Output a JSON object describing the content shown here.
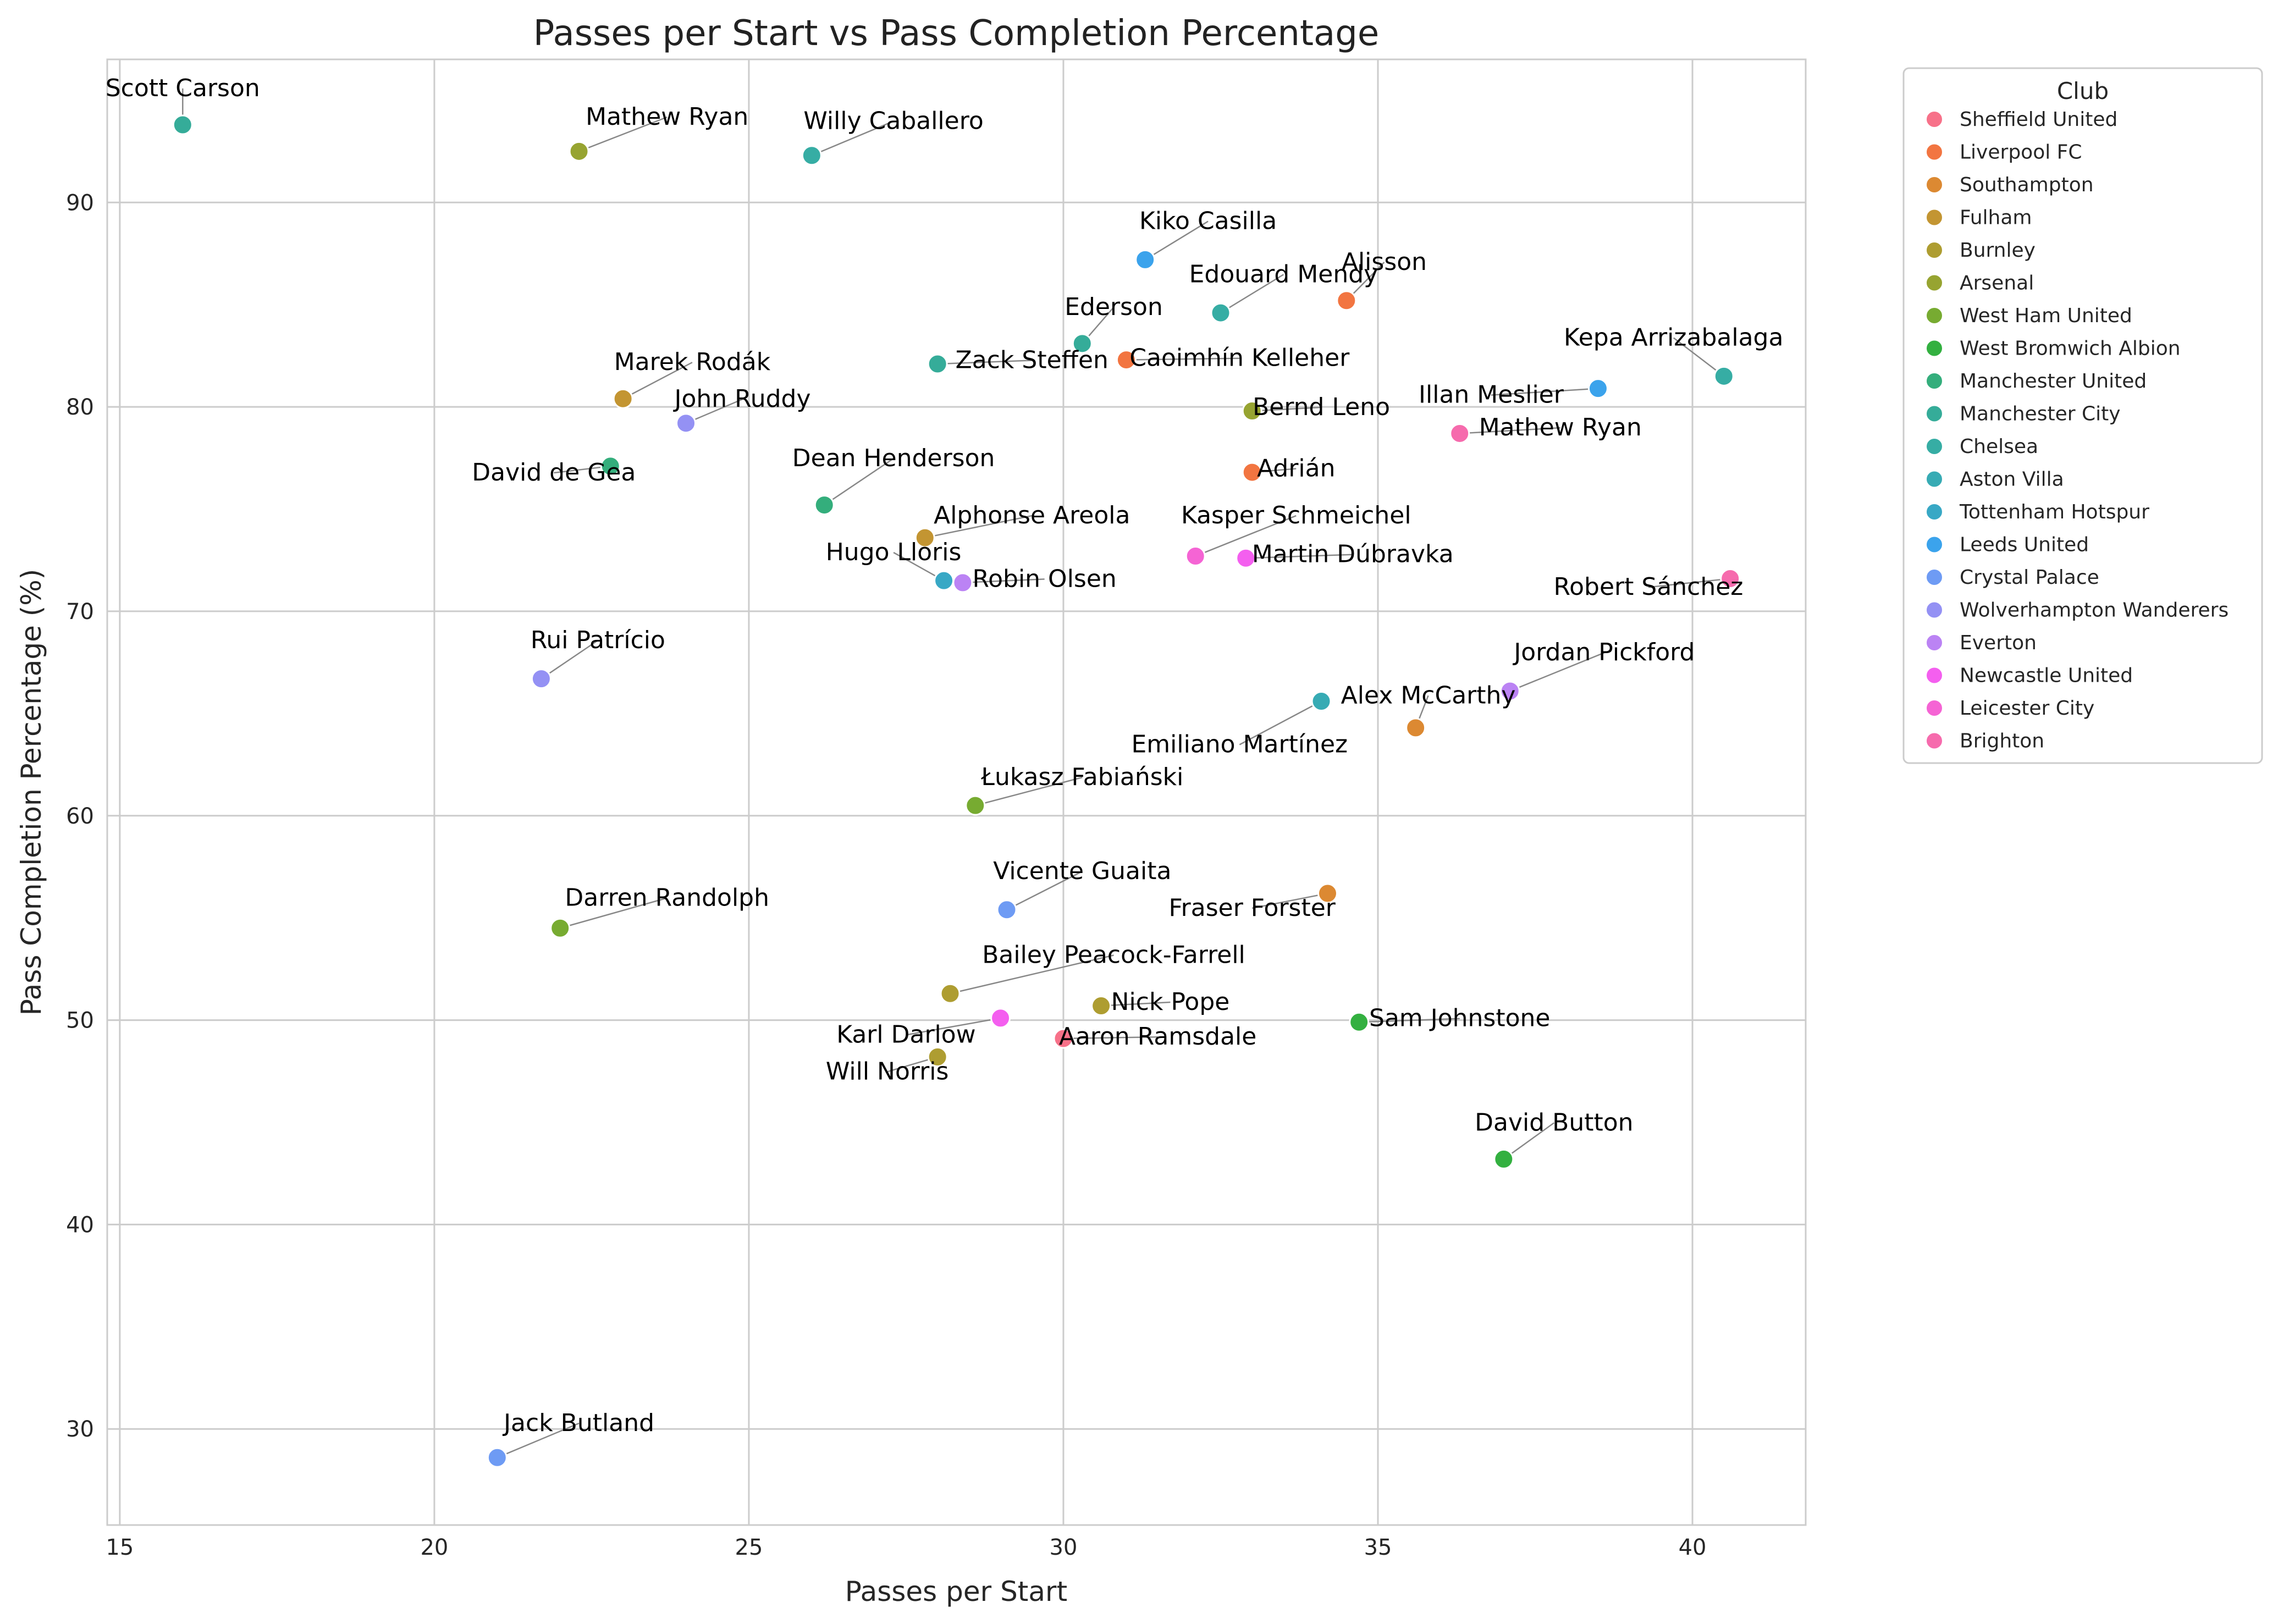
{
  "chart_data": {
    "type": "scatter",
    "title": "Passes per Start vs Pass Completion Percentage",
    "xlabel": "Passes per Start",
    "ylabel": "Pass Completion Percentage (%)",
    "xlim": [
      14.8,
      41.8
    ],
    "ylim": [
      25.3,
      97
    ],
    "x_ticks": [
      15,
      20,
      25,
      30,
      35,
      40
    ],
    "y_ticks": [
      30,
      40,
      50,
      60,
      70,
      80,
      90
    ],
    "grid": true,
    "legend": {
      "title": "Club",
      "placement": "outside-top-right",
      "entries": [
        {
          "name": "Sheffield United",
          "color": "#f77189"
        },
        {
          "name": "Liverpool FC",
          "color": "#f27541"
        },
        {
          "name": "Southampton",
          "color": "#dc8932"
        },
        {
          "name": "Fulham",
          "color": "#c39532"
        },
        {
          "name": "Burnley",
          "color": "#ae9d31"
        },
        {
          "name": "Arsenal",
          "color": "#97a431"
        },
        {
          "name": "West Ham United",
          "color": "#77ab31"
        },
        {
          "name": "West Bromwich Albion",
          "color": "#33b040"
        },
        {
          "name": "Manchester United",
          "color": "#34ae7c"
        },
        {
          "name": "Manchester City",
          "color": "#35ac99"
        },
        {
          "name": "Chelsea",
          "color": "#36ada4"
        },
        {
          "name": "Aston Villa",
          "color": "#37abb4"
        },
        {
          "name": "Tottenham Hotspur",
          "color": "#38a8c5"
        },
        {
          "name": "Leeds United",
          "color": "#3ba3ec"
        },
        {
          "name": "Crystal Palace",
          "color": "#6e9bf4"
        },
        {
          "name": "Wolverhampton Wanderers",
          "color": "#9491f4"
        },
        {
          "name": "Everton",
          "color": "#bb83f4"
        },
        {
          "name": "Newcastle United",
          "color": "#f45fef"
        },
        {
          "name": "Leicester City",
          "color": "#f564d4"
        },
        {
          "name": "Brighton",
          "color": "#f66bad"
        }
      ]
    },
    "points": [
      {
        "label": "Scott Carson",
        "club": "Manchester City",
        "x": 16.0,
        "y": 93.8,
        "lx": 16.0,
        "ly": 95.2
      },
      {
        "label": "Mathew Ryan",
        "club": "Arsenal",
        "x": 22.3,
        "y": 92.5,
        "lx": 23.7,
        "ly": 93.8
      },
      {
        "label": "Willy Caballero",
        "club": "Chelsea",
        "x": 26.0,
        "y": 92.3,
        "lx": 27.3,
        "ly": 93.6
      },
      {
        "label": "Kiko Casilla",
        "club": "Leeds United",
        "x": 31.3,
        "y": 87.2,
        "lx": 32.3,
        "ly": 88.7
      },
      {
        "label": "Alisson",
        "club": "Liverpool FC",
        "x": 34.5,
        "y": 85.2,
        "lx": 35.1,
        "ly": 86.7
      },
      {
        "label": "Edouard Mendy",
        "club": "Chelsea",
        "x": 32.5,
        "y": 84.6,
        "lx": 33.5,
        "ly": 86.1
      },
      {
        "label": "Ederson",
        "club": "Manchester City",
        "x": 30.3,
        "y": 83.1,
        "lx": 30.8,
        "ly": 84.5
      },
      {
        "label": "Caoimhín Kelleher",
        "club": "Liverpool FC",
        "x": 31.0,
        "y": 82.3,
        "lx": 32.8,
        "ly": 82.0
      },
      {
        "label": "Zack Steffen",
        "club": "Manchester City",
        "x": 28.0,
        "y": 82.1,
        "lx": 29.5,
        "ly": 81.9
      },
      {
        "label": "Kepa Arrizabalaga",
        "club": "Chelsea",
        "x": 40.5,
        "y": 81.5,
        "lx": 39.7,
        "ly": 83.0
      },
      {
        "label": "Leeds United",
        "club": "Leeds United",
        "x": 38.5,
        "y": 80.9,
        "lx": 36.8,
        "ly": 80.2,
        "display": "Illan Meslier"
      },
      {
        "label": "Marek Rodák",
        "club": "Fulham",
        "x": 23.0,
        "y": 80.4,
        "lx": 24.1,
        "ly": 81.8
      },
      {
        "label": "Bernd Leno",
        "club": "Arsenal",
        "x": 33.0,
        "y": 79.8,
        "lx": 34.1,
        "ly": 79.6
      },
      {
        "label": "John Ruddy",
        "club": "Wolverhampton Wanderers",
        "x": 24.0,
        "y": 79.2,
        "lx": 24.9,
        "ly": 80.0
      },
      {
        "label": "Mathew Ryan",
        "club": "Brighton",
        "x": 36.3,
        "y": 78.7,
        "lx": 37.9,
        "ly": 78.6
      },
      {
        "label": "David de Gea",
        "club": "Manchester United",
        "x": 22.8,
        "y": 77.1,
        "lx": 21.9,
        "ly": 76.4
      },
      {
        "label": "Adrián",
        "club": "Liverpool FC",
        "x": 33.0,
        "y": 76.8,
        "lx": 33.7,
        "ly": 76.6
      },
      {
        "label": "Dean Henderson",
        "club": "Manchester United",
        "x": 26.2,
        "y": 75.2,
        "lx": 27.3,
        "ly": 77.1
      },
      {
        "label": "Alphonse Areola",
        "club": "Fulham",
        "x": 27.8,
        "y": 73.6,
        "lx": 29.5,
        "ly": 74.3
      },
      {
        "label": "Kasper Schmeichel",
        "club": "Leicester City",
        "x": 32.1,
        "y": 72.7,
        "lx": 33.7,
        "ly": 74.3
      },
      {
        "label": "Martin Dúbravka",
        "club": "Newcastle United",
        "x": 32.9,
        "y": 72.6,
        "lx": 34.6,
        "ly": 72.4
      },
      {
        "label": "Robert Sánchez",
        "club": "Brighton",
        "x": 40.6,
        "y": 71.6,
        "lx": 39.3,
        "ly": 70.8
      },
      {
        "label": "Hugo Lloris",
        "club": "Tottenham Hotspur",
        "x": 28.1,
        "y": 71.5,
        "lx": 27.3,
        "ly": 72.5
      },
      {
        "label": "Robin Olsen",
        "club": "Everton",
        "x": 28.4,
        "y": 71.4,
        "lx": 29.7,
        "ly": 71.2
      },
      {
        "label": "Rui Patrício",
        "club": "Wolverhampton Wanderers",
        "x": 21.7,
        "y": 66.7,
        "lx": 22.6,
        "ly": 68.2
      },
      {
        "label": "Jordan Pickford",
        "club": "Everton",
        "x": 37.1,
        "y": 66.1,
        "lx": 38.6,
        "ly": 67.6
      },
      {
        "label": "Emiliano Martínez",
        "club": "Aston Villa",
        "x": 34.1,
        "y": 65.6,
        "lx": 32.8,
        "ly": 63.1
      },
      {
        "label": "Alex McCarthy",
        "club": "Southampton",
        "x": 35.6,
        "y": 64.3,
        "lx": 35.8,
        "ly": 65.5
      },
      {
        "label": "Łukasz Fabiański",
        "club": "West Ham United",
        "x": 28.6,
        "y": 60.5,
        "lx": 30.3,
        "ly": 61.5
      },
      {
        "label": "Fraser Forster",
        "club": "Southampton",
        "x": 34.2,
        "y": 56.2,
        "lx": 33.0,
        "ly": 55.1
      },
      {
        "label": "Vicente Guaita",
        "club": "Crystal Palace",
        "x": 29.1,
        "y": 55.4,
        "lx": 30.3,
        "ly": 56.9
      },
      {
        "label": "Darren Randolph",
        "club": "West Ham United",
        "x": 22.0,
        "y": 54.5,
        "lx": 23.7,
        "ly": 55.6
      },
      {
        "label": "Bailey Peacock-Farrell",
        "club": "Burnley",
        "x": 28.2,
        "y": 51.3,
        "lx": 30.8,
        "ly": 52.8
      },
      {
        "label": "Nick Pope",
        "club": "Burnley",
        "x": 30.6,
        "y": 50.7,
        "lx": 31.7,
        "ly": 50.5
      },
      {
        "label": "Karl Darlow",
        "club": "Newcastle United",
        "x": 29.0,
        "y": 50.1,
        "lx": 27.5,
        "ly": 48.9
      },
      {
        "label": "Sam Johnstone",
        "club": "West Bromwich Albion",
        "x": 34.7,
        "y": 49.9,
        "lx": 36.3,
        "ly": 49.7
      },
      {
        "label": "Aaron Ramsdale",
        "club": "Sheffield United",
        "x": 30.0,
        "y": 49.1,
        "lx": 31.5,
        "ly": 48.8
      },
      {
        "label": "Will Norris",
        "club": "Burnley",
        "x": 28.0,
        "y": 48.2,
        "lx": 27.2,
        "ly": 47.1
      },
      {
        "label": "David Button",
        "club": "West Bromwich Albion",
        "x": 37.0,
        "y": 43.2,
        "lx": 37.8,
        "ly": 44.6
      },
      {
        "label": "Jack Butland",
        "club": "Crystal Palace",
        "x": 21.0,
        "y": 28.6,
        "lx": 22.3,
        "ly": 29.9
      }
    ]
  }
}
